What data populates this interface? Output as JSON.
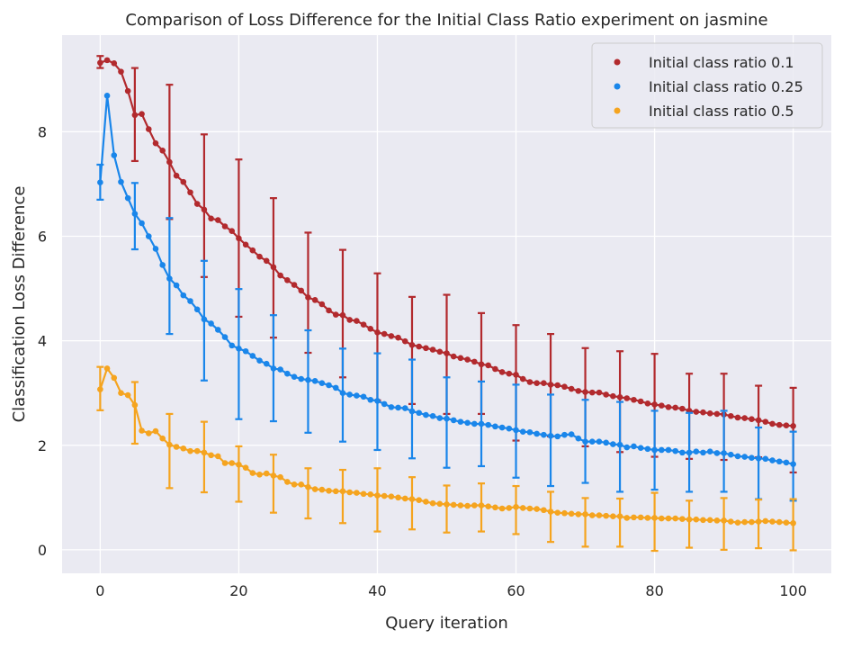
{
  "chart_data": {
    "type": "line",
    "title": "Comparison of Loss Difference for the Initial Class Ratio experiment on jasmine",
    "xlabel": "Query iteration",
    "ylabel": "Classification Loss Difference",
    "xlim": [
      -5.5,
      105.5
    ],
    "ylim": [
      -0.45,
      9.85
    ],
    "xticks": [
      0,
      20,
      40,
      60,
      80,
      100
    ],
    "yticks": [
      0,
      2,
      4,
      6,
      8
    ],
    "grid": true,
    "legend_position": "top-right",
    "series": [
      {
        "name": "Initial class ratio 0.1",
        "color": "#b22a2e",
        "x": [
          0,
          1,
          2,
          3,
          4,
          5,
          6,
          7,
          8,
          9,
          10,
          11,
          12,
          13,
          14,
          15,
          16,
          17,
          18,
          19,
          20,
          21,
          22,
          23,
          24,
          25,
          26,
          27,
          28,
          29,
          30,
          31,
          32,
          33,
          34,
          35,
          36,
          37,
          38,
          39,
          40,
          41,
          42,
          43,
          44,
          45,
          46,
          47,
          48,
          49,
          50,
          51,
          52,
          53,
          54,
          55,
          56,
          57,
          58,
          59,
          60,
          61,
          62,
          63,
          64,
          65,
          66,
          67,
          68,
          69,
          70,
          71,
          72,
          73,
          74,
          75,
          76,
          77,
          78,
          79,
          80,
          81,
          82,
          83,
          84,
          85,
          86,
          87,
          88,
          89,
          90,
          91,
          92,
          93,
          94,
          95,
          96,
          97,
          98,
          99,
          100
        ],
        "y": [
          9.32,
          9.37,
          9.31,
          9.15,
          8.78,
          8.32,
          8.34,
          8.05,
          7.78,
          7.64,
          7.42,
          7.16,
          7.04,
          6.84,
          6.62,
          6.51,
          6.34,
          6.31,
          6.19,
          6.1,
          5.96,
          5.84,
          5.73,
          5.61,
          5.53,
          5.41,
          5.25,
          5.16,
          5.07,
          4.96,
          4.83,
          4.78,
          4.7,
          4.58,
          4.5,
          4.49,
          4.4,
          4.38,
          4.31,
          4.23,
          4.16,
          4.13,
          4.09,
          4.06,
          3.99,
          3.92,
          3.89,
          3.86,
          3.83,
          3.79,
          3.76,
          3.7,
          3.67,
          3.64,
          3.6,
          3.55,
          3.53,
          3.46,
          3.4,
          3.37,
          3.35,
          3.27,
          3.21,
          3.19,
          3.19,
          3.16,
          3.15,
          3.12,
          3.08,
          3.04,
          3.02,
          3.01,
          3.01,
          2.97,
          2.94,
          2.92,
          2.9,
          2.87,
          2.84,
          2.8,
          2.78,
          2.76,
          2.73,
          2.72,
          2.7,
          2.66,
          2.64,
          2.63,
          2.61,
          2.6,
          2.59,
          2.56,
          2.53,
          2.52,
          2.5,
          2.48,
          2.45,
          2.41,
          2.39,
          2.38,
          2.37
        ],
        "error_x": [
          0,
          5,
          10,
          15,
          20,
          25,
          30,
          35,
          40,
          45,
          50,
          55,
          60,
          65,
          70,
          75,
          80,
          85,
          90,
          95,
          100
        ],
        "error_low": [
          9.22,
          7.44,
          6.33,
          5.22,
          4.46,
          4.06,
          3.77,
          3.3,
          2.86,
          2.79,
          2.6,
          2.6,
          2.09,
          2.17,
          1.98,
          1.87,
          1.78,
          1.74,
          1.72,
          1.77,
          1.48
        ],
        "error_high": [
          9.45,
          9.22,
          8.9,
          7.95,
          7.47,
          6.73,
          6.07,
          5.74,
          5.29,
          4.84,
          4.88,
          4.53,
          4.3,
          4.13,
          3.86,
          3.8,
          3.75,
          3.37,
          3.37,
          3.14,
          3.1
        ]
      },
      {
        "name": "Initial class ratio 0.25",
        "color": "#1a86ea",
        "x": [
          0,
          1,
          2,
          3,
          4,
          5,
          6,
          7,
          8,
          9,
          10,
          11,
          12,
          13,
          14,
          15,
          16,
          17,
          18,
          19,
          20,
          21,
          22,
          23,
          24,
          25,
          26,
          27,
          28,
          29,
          30,
          31,
          32,
          33,
          34,
          35,
          36,
          37,
          38,
          39,
          40,
          41,
          42,
          43,
          44,
          45,
          46,
          47,
          48,
          49,
          50,
          51,
          52,
          53,
          54,
          55,
          56,
          57,
          58,
          59,
          60,
          61,
          62,
          63,
          64,
          65,
          66,
          67,
          68,
          69,
          70,
          71,
          72,
          73,
          74,
          75,
          76,
          77,
          78,
          79,
          80,
          81,
          82,
          83,
          84,
          85,
          86,
          87,
          88,
          89,
          90,
          91,
          92,
          93,
          94,
          95,
          96,
          97,
          98,
          99,
          100
        ],
        "y": [
          7.03,
          8.69,
          7.55,
          7.04,
          6.73,
          6.43,
          6.25,
          6.0,
          5.76,
          5.45,
          5.19,
          5.06,
          4.87,
          4.76,
          4.6,
          4.41,
          4.33,
          4.21,
          4.07,
          3.91,
          3.85,
          3.8,
          3.71,
          3.62,
          3.56,
          3.47,
          3.45,
          3.37,
          3.31,
          3.27,
          3.25,
          3.23,
          3.19,
          3.15,
          3.1,
          3.0,
          2.97,
          2.95,
          2.93,
          2.87,
          2.85,
          2.79,
          2.73,
          2.72,
          2.71,
          2.65,
          2.62,
          2.58,
          2.56,
          2.52,
          2.51,
          2.48,
          2.45,
          2.43,
          2.41,
          2.41,
          2.39,
          2.36,
          2.34,
          2.32,
          2.29,
          2.26,
          2.25,
          2.22,
          2.2,
          2.18,
          2.17,
          2.2,
          2.21,
          2.13,
          2.07,
          2.07,
          2.07,
          2.05,
          2.02,
          2.01,
          1.96,
          1.98,
          1.95,
          1.93,
          1.91,
          1.91,
          1.91,
          1.89,
          1.86,
          1.86,
          1.88,
          1.86,
          1.88,
          1.85,
          1.85,
          1.82,
          1.79,
          1.78,
          1.76,
          1.75,
          1.74,
          1.71,
          1.69,
          1.67,
          1.64
        ],
        "error_x": [
          0,
          5,
          10,
          15,
          20,
          25,
          30,
          35,
          40,
          45,
          50,
          55,
          60,
          65,
          70,
          75,
          80,
          85,
          90,
          95,
          100
        ],
        "error_low": [
          6.7,
          5.75,
          4.13,
          3.24,
          2.5,
          2.46,
          2.24,
          2.07,
          1.91,
          1.75,
          1.57,
          1.6,
          1.38,
          1.22,
          1.28,
          1.11,
          1.15,
          1.11,
          1.11,
          0.97,
          0.94
        ],
        "error_high": [
          7.37,
          7.02,
          6.35,
          5.53,
          4.99,
          4.49,
          4.2,
          3.85,
          3.76,
          3.64,
          3.3,
          3.22,
          3.16,
          2.97,
          2.87,
          2.83,
          2.66,
          2.62,
          2.66,
          2.34,
          2.26
        ]
      },
      {
        "name": "Initial class ratio 0.5",
        "color": "#f5a41f",
        "x": [
          0,
          1,
          2,
          3,
          4,
          5,
          6,
          7,
          8,
          9,
          10,
          11,
          12,
          13,
          14,
          15,
          16,
          17,
          18,
          19,
          20,
          21,
          22,
          23,
          24,
          25,
          26,
          27,
          28,
          29,
          30,
          31,
          32,
          33,
          34,
          35,
          36,
          37,
          38,
          39,
          40,
          41,
          42,
          43,
          44,
          45,
          46,
          47,
          48,
          49,
          50,
          51,
          52,
          53,
          54,
          55,
          56,
          57,
          58,
          59,
          60,
          61,
          62,
          63,
          64,
          65,
          66,
          67,
          68,
          69,
          70,
          71,
          72,
          73,
          74,
          75,
          76,
          77,
          78,
          79,
          80,
          81,
          82,
          83,
          84,
          85,
          86,
          87,
          88,
          89,
          90,
          91,
          92,
          93,
          94,
          95,
          96,
          97,
          98,
          99,
          100
        ],
        "y": [
          3.07,
          3.47,
          3.29,
          3.0,
          2.96,
          2.77,
          2.28,
          2.23,
          2.27,
          2.13,
          2.01,
          1.97,
          1.94,
          1.89,
          1.89,
          1.86,
          1.81,
          1.79,
          1.66,
          1.66,
          1.63,
          1.57,
          1.47,
          1.44,
          1.46,
          1.42,
          1.39,
          1.3,
          1.25,
          1.25,
          1.2,
          1.16,
          1.15,
          1.13,
          1.12,
          1.12,
          1.1,
          1.09,
          1.07,
          1.06,
          1.04,
          1.03,
          1.02,
          1.0,
          0.98,
          0.97,
          0.95,
          0.92,
          0.89,
          0.88,
          0.87,
          0.86,
          0.85,
          0.84,
          0.85,
          0.85,
          0.83,
          0.81,
          0.79,
          0.8,
          0.82,
          0.8,
          0.79,
          0.78,
          0.76,
          0.73,
          0.71,
          0.7,
          0.69,
          0.68,
          0.68,
          0.66,
          0.66,
          0.65,
          0.64,
          0.64,
          0.61,
          0.62,
          0.62,
          0.61,
          0.61,
          0.6,
          0.6,
          0.6,
          0.59,
          0.58,
          0.58,
          0.57,
          0.57,
          0.56,
          0.56,
          0.54,
          0.52,
          0.53,
          0.53,
          0.54,
          0.55,
          0.54,
          0.53,
          0.52,
          0.51
        ],
        "error_x": [
          0,
          5,
          10,
          15,
          20,
          25,
          30,
          35,
          40,
          45,
          50,
          55,
          60,
          65,
          70,
          75,
          80,
          85,
          90,
          95,
          100
        ],
        "error_low": [
          2.67,
          2.03,
          1.18,
          1.1,
          0.92,
          0.71,
          0.6,
          0.51,
          0.35,
          0.39,
          0.33,
          0.35,
          0.3,
          0.15,
          0.06,
          0.06,
          -0.02,
          0.04,
          0.0,
          0.03,
          -0.01
        ],
        "error_high": [
          3.5,
          3.21,
          2.6,
          2.45,
          1.98,
          1.82,
          1.56,
          1.53,
          1.56,
          1.39,
          1.23,
          1.27,
          1.22,
          1.11,
          0.99,
          0.98,
          1.09,
          0.94,
          0.99,
          0.96,
          0.97
        ]
      }
    ]
  }
}
